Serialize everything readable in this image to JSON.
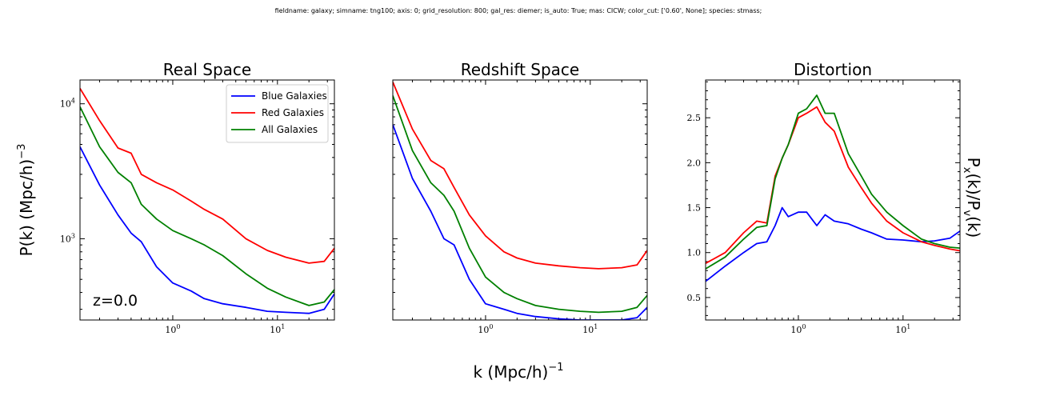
{
  "figure": {
    "suptitle": "fieldname: galaxy; simname: tng100; axis: 0; grid_resolution: 800; gal_res: diemer; is_auto: True; mas: CICW; color_cut: ['0.60', None]; species: stmass;",
    "xlabel_main": "k (Mpc/h)",
    "xlabel_sup": "−1",
    "ylabel_left_main": "P(k) (Mpc/h)",
    "ylabel_left_sup": "−3",
    "ylabel_right_P": "P",
    "ylabel_right_sub_x": "x",
    "ylabel_right_mid": "(k)/P",
    "ylabel_right_sub_v": "v",
    "ylabel_right_end": "(k)",
    "annotation": "z=0.0"
  },
  "colors": {
    "blue": "#0000ff",
    "red": "#ff0000",
    "green": "#008000"
  },
  "legend": [
    {
      "label": "Blue Galaxies",
      "color": "#0000ff"
    },
    {
      "label": "Red Galaxies",
      "color": "#ff0000"
    },
    {
      "label": "All Galaxies",
      "color": "#008000"
    }
  ],
  "chart_data": [
    {
      "type": "line",
      "title": "Real Space",
      "xscale": "log",
      "yscale": "log",
      "xlim": [
        0.13,
        35
      ],
      "ylim": [
        250,
        15000
      ],
      "xticks": [
        {
          "v": 1,
          "base": "10",
          "exp": "0"
        },
        {
          "v": 10,
          "base": "10",
          "exp": "1"
        }
      ],
      "yticks": [
        {
          "v": 1000,
          "base": "10",
          "exp": "3"
        },
        {
          "v": 10000,
          "base": "10",
          "exp": "4"
        }
      ],
      "legend_position": "top-right",
      "series": [
        {
          "name": "Blue Galaxies",
          "color": "#0000ff",
          "x": [
            0.13,
            0.2,
            0.3,
            0.4,
            0.5,
            0.7,
            1.0,
            1.5,
            2,
            3,
            5,
            8,
            12,
            20,
            28,
            35
          ],
          "y": [
            4800,
            2500,
            1500,
            1100,
            950,
            620,
            470,
            410,
            360,
            330,
            310,
            290,
            285,
            280,
            300,
            390
          ]
        },
        {
          "name": "Red Galaxies",
          "color": "#ff0000",
          "x": [
            0.13,
            0.2,
            0.3,
            0.4,
            0.5,
            0.7,
            1.0,
            1.5,
            2,
            3,
            5,
            8,
            12,
            20,
            28,
            35
          ],
          "y": [
            13000,
            7500,
            4700,
            4300,
            3000,
            2600,
            2300,
            1900,
            1650,
            1400,
            1000,
            820,
            730,
            660,
            680,
            850
          ]
        },
        {
          "name": "All Galaxies",
          "color": "#008000",
          "x": [
            0.13,
            0.2,
            0.3,
            0.4,
            0.5,
            0.7,
            1.0,
            1.5,
            2,
            3,
            5,
            8,
            12,
            20,
            28,
            35
          ],
          "y": [
            9500,
            4800,
            3100,
            2600,
            1800,
            1400,
            1150,
            1000,
            900,
            750,
            550,
            430,
            370,
            320,
            340,
            420
          ]
        }
      ]
    },
    {
      "type": "line",
      "title": "Redshift Space",
      "xscale": "log",
      "yscale": "log",
      "xlim": [
        0.13,
        35
      ],
      "ylim": [
        250,
        15000
      ],
      "xticks": [
        {
          "v": 1,
          "base": "10",
          "exp": "0"
        },
        {
          "v": 10,
          "base": "10",
          "exp": "1"
        }
      ],
      "yticks": [],
      "series": [
        {
          "name": "Blue Galaxies",
          "color": "#0000ff",
          "x": [
            0.13,
            0.2,
            0.3,
            0.4,
            0.5,
            0.7,
            1.0,
            1.5,
            2,
            3,
            5,
            8,
            12,
            20,
            28,
            35
          ],
          "y": [
            7000,
            2800,
            1600,
            1000,
            900,
            500,
            330,
            300,
            280,
            265,
            255,
            250,
            250,
            250,
            260,
            310
          ]
        },
        {
          "name": "Red Galaxies",
          "color": "#ff0000",
          "x": [
            0.13,
            0.2,
            0.3,
            0.4,
            0.5,
            0.7,
            1.0,
            1.5,
            2,
            3,
            5,
            8,
            12,
            20,
            28,
            35
          ],
          "y": [
            14500,
            6500,
            3800,
            3300,
            2400,
            1500,
            1050,
            800,
            720,
            660,
            630,
            610,
            600,
            610,
            640,
            820
          ]
        },
        {
          "name": "All Galaxies",
          "color": "#008000",
          "x": [
            0.13,
            0.2,
            0.3,
            0.4,
            0.5,
            0.7,
            1.0,
            1.5,
            2,
            3,
            5,
            8,
            12,
            20,
            28,
            35
          ],
          "y": [
            11500,
            4500,
            2600,
            2100,
            1600,
            850,
            520,
            400,
            360,
            320,
            300,
            290,
            285,
            290,
            310,
            380
          ]
        }
      ]
    },
    {
      "type": "line",
      "title": "Distortion",
      "xscale": "log",
      "yscale": "linear",
      "xlim": [
        0.13,
        35
      ],
      "ylim": [
        0.25,
        2.92
      ],
      "xticks": [
        {
          "v": 1,
          "base": "10",
          "exp": "0"
        },
        {
          "v": 10,
          "base": "10",
          "exp": "1"
        }
      ],
      "yticks": [
        {
          "v": 0.5,
          "label": "0.5"
        },
        {
          "v": 1.0,
          "label": "1.0"
        },
        {
          "v": 1.5,
          "label": "1.5"
        },
        {
          "v": 2.0,
          "label": "2.0"
        },
        {
          "v": 2.5,
          "label": "2.5"
        }
      ],
      "series": [
        {
          "name": "Blue Galaxies",
          "color": "#0000ff",
          "x": [
            0.13,
            0.2,
            0.3,
            0.4,
            0.5,
            0.6,
            0.7,
            0.8,
            1.0,
            1.2,
            1.5,
            1.8,
            2.2,
            3,
            4,
            5,
            7,
            10,
            15,
            20,
            28,
            35
          ],
          "y": [
            0.68,
            0.85,
            1.0,
            1.1,
            1.12,
            1.3,
            1.5,
            1.4,
            1.45,
            1.45,
            1.3,
            1.42,
            1.35,
            1.32,
            1.26,
            1.22,
            1.15,
            1.14,
            1.12,
            1.13,
            1.16,
            1.24
          ]
        },
        {
          "name": "Red Galaxies",
          "color": "#ff0000",
          "x": [
            0.13,
            0.2,
            0.3,
            0.4,
            0.5,
            0.6,
            0.7,
            0.8,
            1.0,
            1.2,
            1.5,
            1.8,
            2.2,
            3,
            4,
            5,
            7,
            10,
            15,
            20,
            28,
            35
          ],
          "y": [
            0.88,
            1.0,
            1.22,
            1.35,
            1.33,
            1.85,
            2.05,
            2.2,
            2.5,
            2.55,
            2.62,
            2.45,
            2.35,
            1.95,
            1.72,
            1.55,
            1.35,
            1.22,
            1.12,
            1.08,
            1.04,
            1.02
          ]
        },
        {
          "name": "All Galaxies",
          "color": "#008000",
          "x": [
            0.13,
            0.2,
            0.3,
            0.4,
            0.5,
            0.6,
            0.7,
            0.8,
            1.0,
            1.2,
            1.5,
            1.8,
            2.2,
            3,
            4,
            5,
            7,
            10,
            15,
            20,
            28,
            35
          ],
          "y": [
            0.82,
            0.95,
            1.15,
            1.28,
            1.3,
            1.82,
            2.05,
            2.2,
            2.55,
            2.6,
            2.75,
            2.55,
            2.55,
            2.1,
            1.85,
            1.65,
            1.45,
            1.3,
            1.15,
            1.1,
            1.06,
            1.05
          ]
        }
      ]
    }
  ]
}
